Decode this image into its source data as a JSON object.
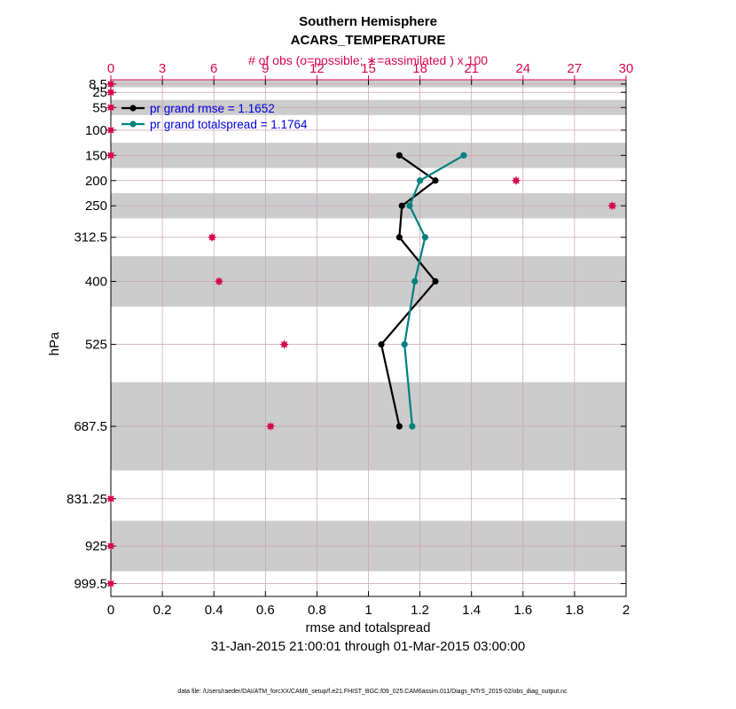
{
  "chart_data": {
    "type": "line",
    "title": [
      "Southern Hemisphere",
      "ACARS_TEMPERATURE"
    ],
    "top_axis_label": "# of obs (o=possible; ∗=assimilated ) x 100",
    "xlabel": "rmse and totalspread",
    "ylabel": "hPa",
    "date_range": "31-Jan-2015 21:00:01 through 01-Mar-2015 03:00:00",
    "footer": "data file: /Users/raeder/DAI/ATM_forcXX/CAM6_setup/f.e21.FHIST_BGC.f09_025.CAM6assim.011/Diags_NTrS_2015-02/obs_diag_output.nc",
    "xlim": [
      0,
      2
    ],
    "x_ticks": [
      "0",
      "0.2",
      "0.4",
      "0.6",
      "0.8",
      "1",
      "1.2",
      "1.4",
      "1.6",
      "1.8",
      "2"
    ],
    "top_xlim": [
      0,
      30
    ],
    "top_ticks": [
      "0",
      "3",
      "6",
      "9",
      "12",
      "15",
      "18",
      "21",
      "24",
      "27",
      "30"
    ],
    "levels": [
      8.5,
      25,
      55,
      100,
      150,
      200,
      250,
      312.5,
      400,
      525,
      687.5,
      831.25,
      925,
      999.5
    ],
    "level_labels": [
      "8.5",
      "25",
      "55",
      "100",
      "150",
      "200",
      "250",
      "312.5",
      "400",
      "525",
      "687.5",
      "831.25",
      "925",
      "999.5"
    ],
    "ylim_hPa": [
      1025,
      0
    ],
    "shaded_layers_hPa": [
      [
        0,
        15
      ],
      [
        40,
        70
      ],
      [
        125,
        175
      ],
      [
        225,
        275
      ],
      [
        350,
        450
      ],
      [
        600,
        775
      ],
      [
        875,
        975
      ]
    ],
    "series": [
      {
        "name": "rmse",
        "legend": "pr grand rmse = 1.1652",
        "color": "#000000",
        "points": [
          [
            1.12,
            150
          ],
          [
            1.26,
            200
          ],
          [
            1.13,
            250
          ],
          [
            1.12,
            312.5
          ],
          [
            1.26,
            400
          ],
          [
            1.05,
            525
          ],
          [
            1.12,
            687.5
          ]
        ]
      },
      {
        "name": "totalspread",
        "legend": "pr grand totalspread = 1.1764",
        "color": "#008080",
        "points": [
          [
            1.37,
            150
          ],
          [
            1.2,
            200
          ],
          [
            1.16,
            250
          ],
          [
            1.22,
            312.5
          ],
          [
            1.18,
            400
          ],
          [
            1.14,
            525
          ],
          [
            1.17,
            687.5
          ]
        ]
      }
    ],
    "obs_counts_x100": [
      [
        0,
        8.5
      ],
      [
        0,
        25
      ],
      [
        0,
        55
      ],
      [
        0,
        100
      ],
      [
        0,
        150
      ],
      [
        23.6,
        200
      ],
      [
        29.2,
        250
      ],
      [
        5.9,
        312.5
      ],
      [
        6.3,
        400
      ],
      [
        10.1,
        525
      ],
      [
        9.3,
        687.5
      ],
      [
        0,
        831.25
      ],
      [
        0,
        925
      ],
      [
        0,
        999.5
      ]
    ],
    "colors": {
      "axis": "#000000",
      "top_axis": "#d6084c",
      "grid": "#c9a0b8",
      "shade": "#cccccc",
      "legend_text": "#0000dd"
    }
  }
}
